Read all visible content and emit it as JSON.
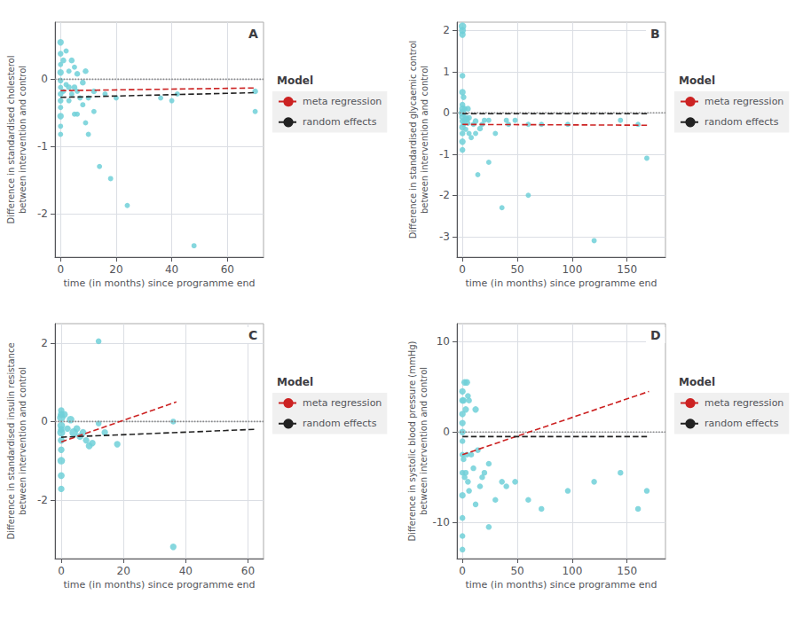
{
  "chart_data": [
    {
      "type": "scatter",
      "title": "A",
      "xlabel": "time (in months) since programme end",
      "ylabel": "Difference in standardised cholesterol\nbetween intervention and control",
      "xlim": [
        -2,
        73
      ],
      "ylim": [
        -2.65,
        0.85
      ],
      "xticks": [
        0,
        20,
        40,
        60
      ],
      "yticks": [
        -2,
        -1,
        0
      ],
      "grid": true,
      "legend": "right",
      "legend_title": "Model",
      "series": [
        {
          "type": "scatter",
          "marker": "circle",
          "color": "#70d0d8",
          "x": [
            0,
            0,
            0,
            0,
            0,
            0,
            0,
            0,
            0,
            0,
            0,
            0,
            1,
            1,
            2,
            2,
            3,
            3,
            3,
            4,
            4,
            5,
            5,
            5,
            6,
            6,
            6,
            7,
            8,
            8,
            9,
            9,
            10,
            10,
            12,
            12,
            14,
            16,
            18,
            20,
            24,
            36,
            40,
            42,
            48,
            70,
            70
          ],
          "values": [
            0.55,
            0.38,
            0.22,
            0.1,
            -0.02,
            -0.12,
            -0.22,
            -0.32,
            -0.42,
            -0.55,
            -0.7,
            -0.82,
            0.28,
            -0.18,
            0.42,
            -0.08,
            0.12,
            -0.12,
            -0.32,
            0.28,
            -0.22,
            0.18,
            -0.12,
            -0.52,
            0.08,
            -0.18,
            -0.52,
            -0.28,
            -0.05,
            -0.38,
            0.12,
            -0.65,
            -0.28,
            -0.82,
            -0.18,
            -0.48,
            -1.3,
            -0.22,
            -1.48,
            -0.28,
            -1.88,
            -0.28,
            -0.32,
            -0.22,
            -2.48,
            -0.18,
            -0.48
          ],
          "sizes": [
            28,
            22,
            18,
            28,
            22,
            18,
            22,
            22,
            18,
            28,
            18,
            18,
            22,
            18,
            18,
            18,
            18,
            22,
            18,
            22,
            18,
            18,
            22,
            18,
            22,
            18,
            18,
            18,
            22,
            18,
            22,
            18,
            18,
            18,
            22,
            18,
            18,
            18,
            18,
            18,
            18,
            18,
            18,
            18,
            18,
            22,
            18
          ]
        },
        {
          "type": "line",
          "line_style": "dotted",
          "color": "#888888",
          "x": [
            -2,
            73
          ],
          "values": [
            0.0,
            0.0
          ]
        },
        {
          "name": "meta regression",
          "type": "line",
          "line_style": "dashed",
          "color": "#cc2222",
          "x": [
            0,
            70
          ],
          "values": [
            -0.17,
            -0.13
          ]
        },
        {
          "name": "random effects",
          "type": "line",
          "line_style": "dashed",
          "color": "#222222",
          "x": [
            0,
            70
          ],
          "values": [
            -0.27,
            -0.2
          ]
        }
      ]
    },
    {
      "type": "scatter",
      "title": "B",
      "xlabel": "time (in months) since programme end",
      "ylabel": "Difference in standardised glycaemic control\nbetween intervention and control",
      "xlim": [
        -5,
        185
      ],
      "ylim": [
        -3.5,
        2.2
      ],
      "xticks": [
        0,
        50,
        100,
        150
      ],
      "yticks": [
        -3,
        -2,
        -1,
        0,
        1,
        2
      ],
      "grid": true,
      "legend": "right",
      "legend_title": "Model",
      "series": [
        {
          "type": "scatter",
          "marker": "circle",
          "color": "#70d0d8",
          "x": [
            0,
            0,
            0,
            0,
            0,
            0,
            0,
            0,
            0,
            0,
            0,
            0,
            0,
            0,
            1,
            1,
            2,
            2,
            3,
            3,
            4,
            5,
            5,
            6,
            6,
            8,
            10,
            12,
            12,
            14,
            16,
            18,
            20,
            24,
            24,
            30,
            36,
            40,
            42,
            48,
            60,
            60,
            72,
            96,
            120,
            144,
            160,
            168
          ],
          "values": [
            2.1,
            2.0,
            1.9,
            0.9,
            0.5,
            0.2,
            0.1,
            0.0,
            -0.1,
            -0.2,
            -0.35,
            -0.5,
            -0.7,
            -0.9,
            0.38,
            -0.28,
            0.1,
            -0.2,
            -0.12,
            -0.4,
            -0.15,
            0.1,
            -0.25,
            -0.12,
            -0.5,
            -0.6,
            -0.28,
            -0.2,
            -0.5,
            -1.5,
            -0.38,
            -0.28,
            -0.18,
            -0.18,
            -1.2,
            -0.5,
            -2.3,
            -0.18,
            -0.28,
            -0.18,
            -2.0,
            -0.28,
            -0.28,
            -0.28,
            -3.1,
            -0.18,
            -0.28,
            -1.1
          ],
          "sizes": [
            38,
            32,
            28,
            22,
            28,
            22,
            28,
            38,
            28,
            22,
            28,
            22,
            28,
            22,
            22,
            18,
            22,
            18,
            22,
            18,
            28,
            22,
            18,
            22,
            18,
            18,
            18,
            22,
            18,
            18,
            22,
            18,
            18,
            18,
            18,
            18,
            18,
            18,
            18,
            18,
            18,
            18,
            18,
            18,
            18,
            18,
            18,
            18
          ]
        },
        {
          "type": "line",
          "line_style": "dotted",
          "color": "#888888",
          "x": [
            -5,
            185
          ],
          "values": [
            0.0,
            0.0
          ]
        },
        {
          "name": "meta regression",
          "type": "line",
          "line_style": "dashed",
          "color": "#cc2222",
          "x": [
            0,
            170
          ],
          "values": [
            -0.28,
            -0.3
          ]
        },
        {
          "name": "random effects",
          "type": "line",
          "line_style": "dashed",
          "color": "#222222",
          "x": [
            0,
            170
          ],
          "values": [
            -0.02,
            -0.02
          ]
        }
      ]
    },
    {
      "type": "scatter",
      "title": "C",
      "xlabel": "time (in months) since programme end",
      "ylabel": "Difference in standardised insulin resistance\nbetween intervention and control",
      "xlim": [
        -2,
        65
      ],
      "ylim": [
        -3.5,
        2.5
      ],
      "xticks": [
        0,
        20,
        40,
        60
      ],
      "yticks": [
        -2,
        0,
        2
      ],
      "grid": true,
      "legend": "right",
      "legend_title": "Model",
      "series": [
        {
          "type": "scatter",
          "marker": "circle",
          "color": "#70d0d8",
          "x": [
            0,
            0,
            0,
            0,
            0,
            0,
            0,
            0,
            0,
            0,
            0,
            1,
            2,
            3,
            4,
            5,
            6,
            7,
            8,
            9,
            10,
            12,
            14,
            18,
            36
          ],
          "values": [
            0.28,
            0.1,
            -0.1,
            -0.28,
            -0.48,
            -0.72,
            -1.0,
            -1.38,
            -1.72,
            0.18,
            -0.2,
            0.18,
            -0.18,
            0.05,
            -0.28,
            -0.18,
            -0.38,
            -0.28,
            -0.48,
            -0.62,
            -0.55,
            -0.05,
            -0.28,
            -0.58,
            -3.2
          ],
          "sizes": [
            28,
            45,
            38,
            42,
            32,
            28,
            38,
            32,
            28,
            32,
            28,
            32,
            28,
            38,
            48,
            32,
            32,
            32,
            28,
            32,
            28,
            22,
            28,
            28,
            28
          ]
        },
        {
          "type": "scatter",
          "marker": "circle",
          "color": "#70d0d8",
          "x": [
            12,
            36
          ],
          "values": [
            2.05,
            0.0
          ],
          "sizes": [
            22,
            22
          ]
        },
        {
          "type": "line",
          "line_style": "dotted",
          "color": "#888888",
          "x": [
            -2,
            65
          ],
          "values": [
            0.0,
            0.0
          ]
        },
        {
          "name": "meta regression",
          "type": "line",
          "line_style": "dashed",
          "color": "#cc2222",
          "x": [
            0,
            37
          ],
          "values": [
            -0.52,
            0.5
          ]
        },
        {
          "name": "random effects",
          "type": "line",
          "line_style": "dashed",
          "color": "#222222",
          "x": [
            0,
            62
          ],
          "values": [
            -0.4,
            -0.2
          ]
        }
      ]
    },
    {
      "type": "scatter",
      "title": "D",
      "xlabel": "time (in months) since programme end",
      "ylabel": "Difference in systolic blood pressure (mmHg)\nbetween intervention and control",
      "xlim": [
        -5,
        185
      ],
      "ylim": [
        -14,
        12
      ],
      "xticks": [
        0,
        50,
        100,
        150
      ],
      "yticks": [
        -10,
        0,
        10
      ],
      "grid": true,
      "legend": "right",
      "legend_title": "Model",
      "series": [
        {
          "type": "scatter",
          "marker": "circle",
          "color": "#70d0d8",
          "x": [
            0,
            0,
            0,
            0,
            0,
            0,
            0,
            0,
            0,
            0,
            0,
            0,
            1,
            1,
            2,
            2,
            3,
            3,
            4,
            4,
            5,
            5,
            6,
            6,
            8,
            10,
            12,
            12,
            14,
            16,
            18,
            20,
            24,
            24,
            30,
            36,
            40,
            48,
            60,
            72,
            96,
            120,
            144,
            160,
            168
          ],
          "values": [
            4.5,
            3.5,
            2.0,
            1.0,
            0.0,
            -1.0,
            -2.5,
            -4.5,
            -7.0,
            -9.5,
            -11.5,
            -13.0,
            3.5,
            -3.0,
            5.5,
            -5.0,
            2.5,
            -4.5,
            5.5,
            -2.5,
            4.0,
            -5.5,
            3.5,
            -6.5,
            -2.5,
            -4.0,
            2.5,
            -8.0,
            -2.0,
            -6.0,
            -5.0,
            -4.5,
            -3.5,
            -10.5,
            -7.5,
            -5.5,
            -6.0,
            -5.5,
            -7.5,
            -8.5,
            -6.5,
            -5.5,
            -4.5,
            -8.5,
            -6.5
          ],
          "sizes": [
            28,
            28,
            28,
            28,
            28,
            22,
            22,
            22,
            28,
            22,
            22,
            22,
            28,
            22,
            28,
            22,
            28,
            22,
            28,
            22,
            22,
            22,
            22,
            22,
            22,
            22,
            28,
            22,
            22,
            22,
            22,
            22,
            22,
            22,
            22,
            22,
            22,
            22,
            22,
            22,
            22,
            22,
            22,
            22,
            22
          ]
        },
        {
          "type": "line",
          "line_style": "dotted",
          "color": "#888888",
          "x": [
            -5,
            185
          ],
          "values": [
            0.0,
            0.0
          ]
        },
        {
          "name": "meta regression",
          "type": "line",
          "line_style": "dashed",
          "color": "#cc2222",
          "x": [
            0,
            170
          ],
          "values": [
            -2.5,
            4.5
          ]
        },
        {
          "name": "random effects",
          "type": "line",
          "line_style": "dashed",
          "color": "#222222",
          "x": [
            0,
            170
          ],
          "values": [
            -0.5,
            -0.5
          ]
        }
      ]
    }
  ]
}
